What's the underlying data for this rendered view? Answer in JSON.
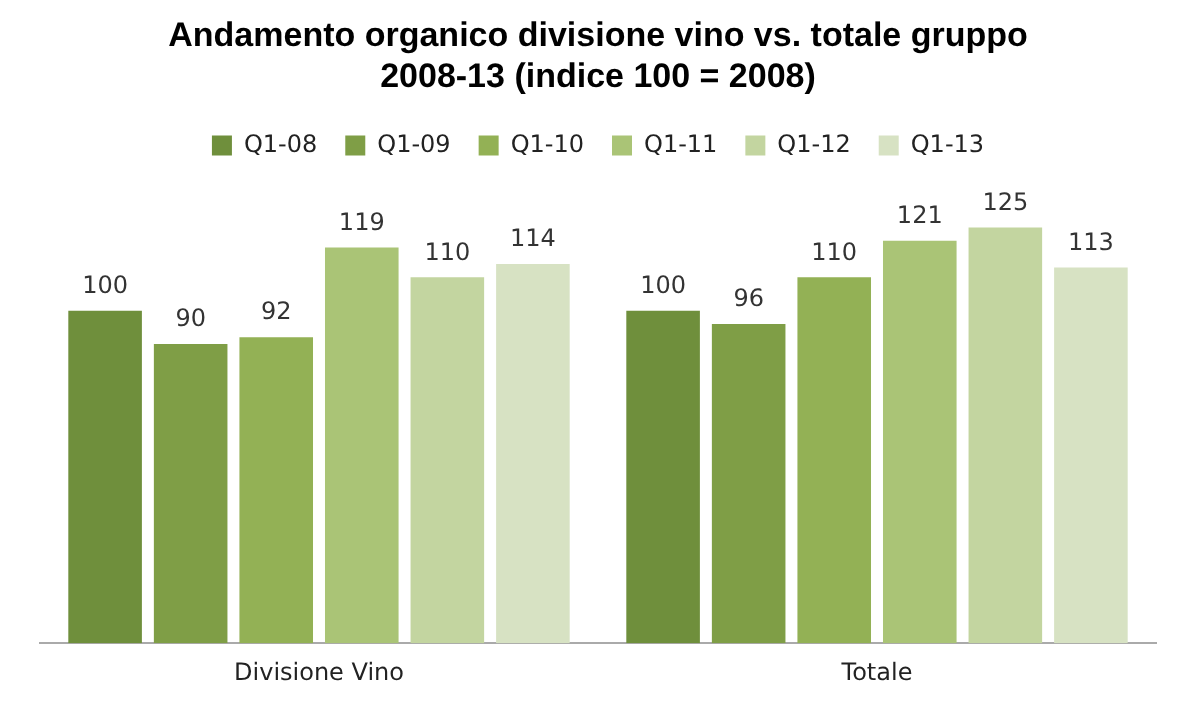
{
  "chart_data": {
    "type": "bar",
    "title": "Andamento organico divisione vino vs. totale gruppo\n2008-13 (indice 100 = 2008)",
    "categories": [
      "Divisione Vino",
      "Totale"
    ],
    "series": [
      {
        "name": "Q1-08",
        "color": "#6f8f3c",
        "values": [
          100,
          100
        ]
      },
      {
        "name": "Q1-09",
        "color": "#7f9e46",
        "values": [
          90,
          96
        ]
      },
      {
        "name": "Q1-10",
        "color": "#93b155",
        "values": [
          92,
          110
        ]
      },
      {
        "name": "Q1-11",
        "color": "#aac476",
        "values": [
          119,
          121
        ]
      },
      {
        "name": "Q1-12",
        "color": "#c3d5a0",
        "values": [
          110,
          125
        ]
      },
      {
        "name": "Q1-13",
        "color": "#d7e2c3",
        "values": [
          114,
          113
        ]
      }
    ],
    "data_labels": true,
    "legend": "top"
  }
}
